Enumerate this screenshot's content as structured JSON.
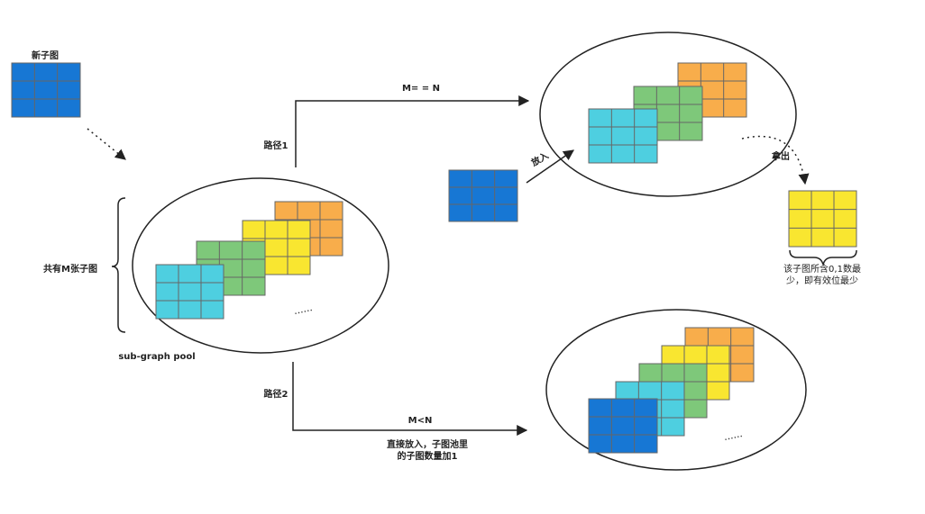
{
  "labels": {
    "new_subgraph": "新子图",
    "m_subgraphs": "共有M张子图",
    "pool": "sub-graph pool",
    "path1": "路径1",
    "path2": "路径2",
    "cond_equal": "M= = N",
    "cond_less": "M<N",
    "put_in": "放入",
    "take_out": "拿出",
    "least_bits_line1": "该子图所含0,1数最",
    "least_bits_line2": "少，即有效位最少",
    "direct_put_line1": "直接放入，子图池里",
    "direct_put_line2": "的子图数量加1",
    "ellipsis": "......"
  },
  "colors": {
    "blue": "#1777d4",
    "cyan": "#4ecfe0",
    "green": "#7ec87a",
    "yellow": "#f9e630",
    "orange": "#f8ad4b",
    "grid_line": "#666666",
    "stroke": "#222222"
  },
  "icons": {
    "arrow": "arrow-icon",
    "brace": "brace-icon"
  }
}
